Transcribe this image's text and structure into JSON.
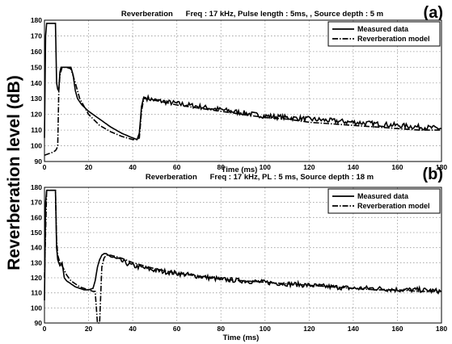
{
  "ylabel": "Reverberation level (dB)",
  "chart_data": [
    {
      "type": "line",
      "panel_label": "(a)",
      "title": "Reverberation      Freq : 17 kHz, Pulse length : 5ms, , Source depth : 5 m",
      "xlabel": "Time (ms)",
      "ylabel": "",
      "xlim": [
        0,
        180
      ],
      "ylim": [
        90,
        180
      ],
      "xticks": [
        "0",
        "20",
        "40",
        "60",
        "80",
        "100",
        "120",
        "140",
        "160",
        "180"
      ],
      "yticks": [
        "90",
        "100",
        "110",
        "120",
        "130",
        "140",
        "150",
        "160",
        "170",
        "180"
      ],
      "grid": true,
      "legend_position": "top-right",
      "series": [
        {
          "name": "Measured data",
          "style": "solid",
          "x": [
            0,
            0.5,
            1,
            5,
            5.5,
            6,
            6.5,
            7,
            7.5,
            8,
            10,
            12,
            13,
            14,
            15,
            17,
            20,
            25,
            30,
            35,
            40,
            42,
            43,
            44,
            45,
            50,
            55,
            60,
            70,
            80,
            90,
            100,
            110,
            120,
            130,
            140,
            150,
            160,
            170,
            180
          ],
          "y": [
            105,
            170,
            178,
            178,
            140,
            136,
            135,
            147,
            150,
            150,
            150,
            150,
            145,
            135,
            130,
            126,
            122,
            117,
            112,
            108,
            105,
            104,
            108,
            125,
            131,
            129,
            128,
            127,
            125,
            123,
            121,
            119,
            118,
            117,
            116,
            115,
            114,
            113,
            112,
            111
          ]
        },
        {
          "name": "Reverberation model",
          "style": "dash-dot",
          "x": [
            0,
            2,
            4,
            5,
            5.5,
            6,
            6.5,
            7,
            8,
            10,
            12,
            14,
            16,
            20,
            25,
            30,
            35,
            40,
            42,
            43,
            44,
            45,
            46,
            50,
            60,
            70,
            80,
            90,
            100,
            110,
            120,
            130,
            140,
            150,
            160,
            170,
            180
          ],
          "y": [
            94,
            95,
            96,
            97,
            98,
            100,
            135,
            145,
            150,
            150,
            149,
            140,
            130,
            120,
            113,
            109,
            106,
            104,
            104,
            105,
            122,
            130,
            130,
            129,
            126,
            124,
            122,
            120,
            118,
            117,
            115,
            114,
            113,
            112,
            111,
            110,
            110
          ]
        }
      ]
    },
    {
      "type": "line",
      "panel_label": "(b)",
      "title": "Reverberation      Freq : 17 kHz, PL : 5 ms, Source depth : 18 m",
      "xlabel": "Time (ms)",
      "ylabel": "",
      "xlim": [
        0,
        180
      ],
      "ylim": [
        90,
        180
      ],
      "xticks": [
        "0",
        "20",
        "40",
        "60",
        "80",
        "100",
        "120",
        "140",
        "160",
        "180"
      ],
      "yticks": [
        "90",
        "100",
        "110",
        "120",
        "130",
        "140",
        "150",
        "160",
        "170",
        "180"
      ],
      "grid": true,
      "legend_position": "top-right",
      "series": [
        {
          "name": "Measured data",
          "style": "solid",
          "x": [
            0,
            0.5,
            1,
            5,
            5.5,
            6,
            7,
            8,
            9,
            10,
            12,
            14,
            16,
            18,
            20,
            22,
            23,
            24,
            25,
            26,
            27,
            28,
            30,
            35,
            40,
            50,
            60,
            70,
            80,
            90,
            100,
            110,
            120,
            130,
            140,
            150,
            160,
            170,
            180
          ],
          "y": [
            105,
            170,
            178,
            178,
            140,
            132,
            128,
            130,
            120,
            118,
            116,
            114,
            113,
            112,
            112,
            113,
            118,
            127,
            132,
            135,
            136,
            136,
            134,
            131,
            128,
            125,
            123,
            121,
            119,
            118,
            117,
            116,
            115,
            114,
            113,
            113,
            112,
            112,
            111
          ]
        },
        {
          "name": "Reverberation model",
          "style": "dash-dot",
          "x": [
            0,
            1,
            4,
            5,
            5.5,
            6,
            7,
            8,
            10,
            12,
            14,
            16,
            18,
            20,
            22,
            23,
            24,
            25,
            26,
            27,
            28,
            30,
            35,
            40,
            50,
            60,
            70,
            80,
            90,
            100,
            110,
            120,
            130,
            140,
            150,
            160,
            170,
            180
          ],
          "y": [
            120,
            178,
            178,
            178,
            145,
            135,
            130,
            128,
            122,
            118,
            116,
            114,
            113,
            112,
            111,
            111,
            90,
            90,
            127,
            133,
            135,
            135,
            133,
            130,
            126,
            123,
            121,
            119,
            118,
            117,
            116,
            115,
            114,
            113,
            112,
            112,
            111,
            111
          ]
        }
      ]
    }
  ]
}
